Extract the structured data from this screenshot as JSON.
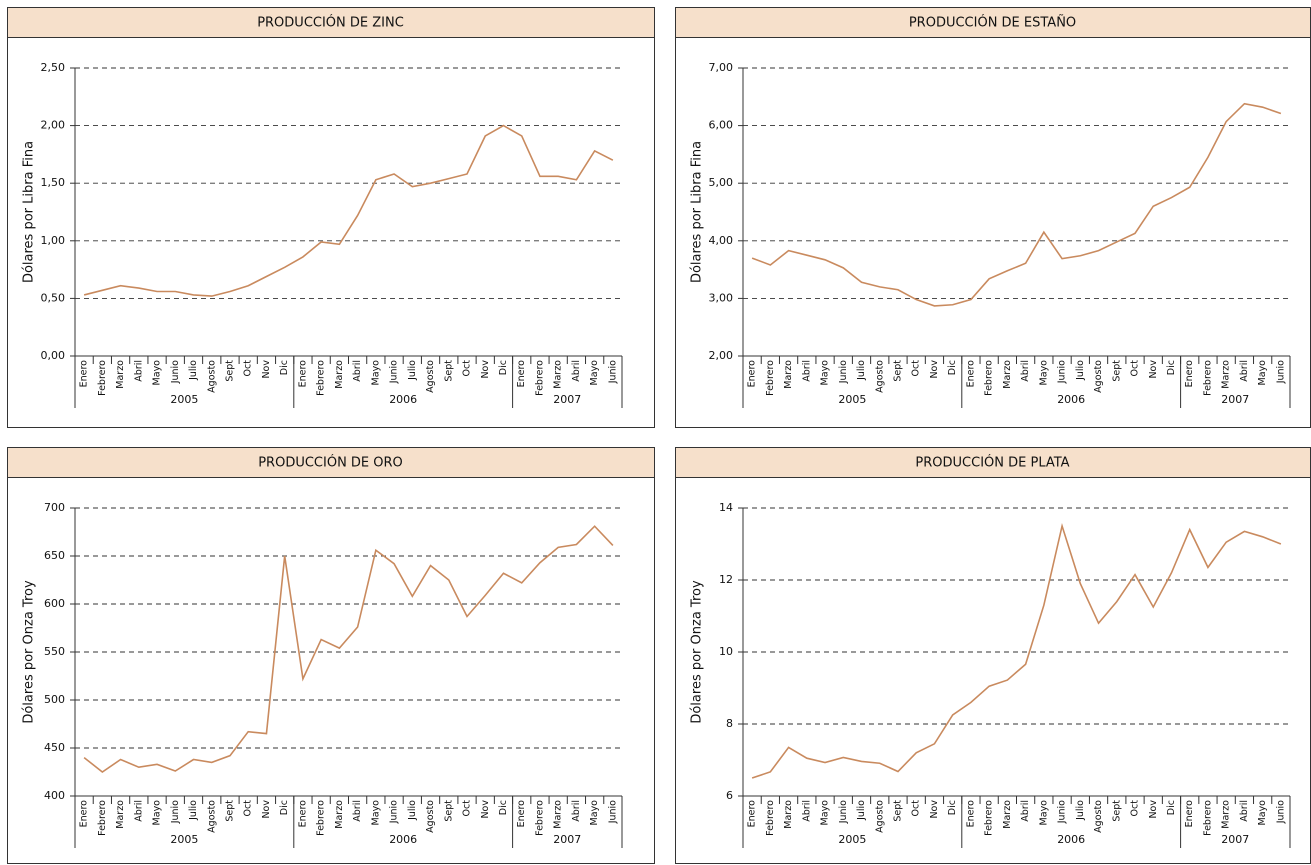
{
  "chart_data": [
    {
      "type": "line",
      "title": "PRODUCCIÓN DE ZINC",
      "ylabel": "Dólares por Libra Fina",
      "categories": [
        "Enero",
        "Febrero",
        "Marzo",
        "Abril",
        "Mayo",
        "Junio",
        "Julio",
        "Agosto",
        "Sept",
        "Oct",
        "Nov",
        "Dic",
        "Enero",
        "Febrero",
        "Marzo",
        "Abril",
        "Mayo",
        "Junio",
        "Julio",
        "Agosto",
        "Sept",
        "Oct",
        "Nov",
        "Dic",
        "Enero",
        "Febrero",
        "Marzo",
        "Abril",
        "Mayo",
        "Junio"
      ],
      "category_groups": [
        "2005",
        "2005",
        "2005",
        "2005",
        "2005",
        "2005",
        "2005",
        "2005",
        "2005",
        "2005",
        "2005",
        "2005",
        "2006",
        "2006",
        "2006",
        "2006",
        "2006",
        "2006",
        "2006",
        "2006",
        "2006",
        "2006",
        "2006",
        "2006",
        "2007",
        "2007",
        "2007",
        "2007",
        "2007",
        "2007"
      ],
      "color": "#c98a5e",
      "values": [
        0.53,
        0.57,
        0.61,
        0.59,
        0.56,
        0.56,
        0.53,
        0.52,
        0.56,
        0.61,
        0.69,
        0.77,
        0.86,
        0.99,
        0.97,
        1.22,
        1.53,
        1.58,
        1.47,
        1.5,
        1.54,
        1.58,
        1.91,
        2.0,
        1.91,
        1.56,
        1.56,
        1.53,
        1.78,
        1.7
      ],
      "ylim": [
        0,
        2.5
      ],
      "yticks": [
        {
          "value": 0,
          "label": "0,00"
        },
        {
          "value": 0.5,
          "label": "0,50"
        },
        {
          "value": 1,
          "label": "1,00"
        },
        {
          "value": 1.5,
          "label": "1,50"
        },
        {
          "value": 2,
          "label": "2,00"
        },
        {
          "value": 2.5,
          "label": "2,50"
        }
      ],
      "grid": true
    },
    {
      "type": "line",
      "title": "PRODUCCIÓN DE ESTAÑO",
      "ylabel": "Dólares por Libra Fina",
      "categories": [
        "Enero",
        "Febrero",
        "Marzo",
        "Abril",
        "Mayo",
        "Junio",
        "Julio",
        "Agosto",
        "Sept",
        "Oct",
        "Nov",
        "Dic",
        "Enero",
        "Febrero",
        "Marzo",
        "Abril",
        "Mayo",
        "Junio",
        "Julio",
        "Agosto",
        "Sept",
        "Oct",
        "Nov",
        "Dic",
        "Enero",
        "Febrero",
        "Marzo",
        "Abril",
        "Mayo",
        "Junio"
      ],
      "category_groups": [
        "2005",
        "2005",
        "2005",
        "2005",
        "2005",
        "2005",
        "2005",
        "2005",
        "2005",
        "2005",
        "2005",
        "2005",
        "2006",
        "2006",
        "2006",
        "2006",
        "2006",
        "2006",
        "2006",
        "2006",
        "2006",
        "2006",
        "2006",
        "2006",
        "2007",
        "2007",
        "2007",
        "2007",
        "2007",
        "2007"
      ],
      "color": "#c98a5e",
      "values": [
        3.7,
        3.58,
        3.83,
        3.75,
        3.67,
        3.53,
        3.28,
        3.2,
        3.15,
        2.98,
        2.87,
        2.89,
        2.98,
        3.34,
        3.48,
        3.61,
        4.15,
        3.69,
        3.74,
        3.83,
        3.98,
        4.13,
        4.6,
        4.75,
        4.93,
        5.45,
        6.07,
        6.38,
        6.32,
        6.21
      ],
      "ylim": [
        2,
        7
      ],
      "yticks": [
        {
          "value": 2,
          "label": "2,00"
        },
        {
          "value": 3,
          "label": "3,00"
        },
        {
          "value": 4,
          "label": "4,00"
        },
        {
          "value": 5,
          "label": "5,00"
        },
        {
          "value": 6,
          "label": "6,00"
        },
        {
          "value": 7,
          "label": "7,00"
        }
      ],
      "grid": true
    },
    {
      "type": "line",
      "title": "PRODUCCIÓN DE ORO",
      "ylabel": "Dólares por Onza Troy",
      "categories": [
        "Enero",
        "Febrero",
        "Marzo",
        "Abril",
        "Mayo",
        "Junio",
        "Julio",
        "Agosto",
        "Sept",
        "Oct",
        "Nov",
        "Dic",
        "Enero",
        "Febrero",
        "Marzo",
        "Abril",
        "Mayo",
        "Junio",
        "Julio",
        "Agosto",
        "Sept",
        "Oct",
        "Nov",
        "Dic",
        "Enero",
        "Febrero",
        "Marzo",
        "Abril",
        "Mayo",
        "Junio"
      ],
      "category_groups": [
        "2005",
        "2005",
        "2005",
        "2005",
        "2005",
        "2005",
        "2005",
        "2005",
        "2005",
        "2005",
        "2005",
        "2005",
        "2006",
        "2006",
        "2006",
        "2006",
        "2006",
        "2006",
        "2006",
        "2006",
        "2006",
        "2006",
        "2006",
        "2006",
        "2007",
        "2007",
        "2007",
        "2007",
        "2007",
        "2007"
      ],
      "color": "#c98a5e",
      "values": [
        440,
        425,
        438,
        430,
        433,
        426,
        438,
        435,
        442,
        467,
        465,
        650,
        522,
        563,
        554,
        576,
        656,
        642,
        608,
        640,
        625,
        587,
        609,
        632,
        622,
        643,
        659,
        662,
        681,
        661
      ],
      "ylim": [
        400,
        700
      ],
      "yticks": [
        400,
        450,
        500,
        550,
        600,
        650,
        700
      ],
      "grid": true
    },
    {
      "type": "line",
      "title": "PRODUCCIÓN DE PLATA",
      "ylabel": "Dólares por Onza Troy",
      "categories": [
        "Enero",
        "Febrero",
        "Marzo",
        "Abril",
        "Mayo",
        "Junio",
        "Julio",
        "Agosto",
        "Sept",
        "Oct",
        "Nov",
        "Dic",
        "Enero",
        "Febrero",
        "Marzo",
        "Abril",
        "Mayo",
        "Junio",
        "Julio",
        "Agosto",
        "Sept",
        "Oct",
        "Nov",
        "Dic",
        "Enero",
        "Febrero",
        "Marzo",
        "Abril",
        "Mayo",
        "Junio"
      ],
      "category_groups": [
        "2005",
        "2005",
        "2005",
        "2005",
        "2005",
        "2005",
        "2005",
        "2005",
        "2005",
        "2005",
        "2005",
        "2005",
        "2006",
        "2006",
        "2006",
        "2006",
        "2006",
        "2006",
        "2006",
        "2006",
        "2006",
        "2006",
        "2006",
        "2006",
        "2007",
        "2007",
        "2007",
        "2007",
        "2007",
        "2007"
      ],
      "color": "#c98a5e",
      "values": [
        6.5,
        6.67,
        7.35,
        7.05,
        6.93,
        7.07,
        6.96,
        6.91,
        6.68,
        7.2,
        7.45,
        8.25,
        8.6,
        9.05,
        9.22,
        9.66,
        11.3,
        13.5,
        11.9,
        10.8,
        11.4,
        12.15,
        11.25,
        12.2,
        13.4,
        12.35,
        13.05,
        13.35,
        13.2,
        13.0
      ],
      "ylim": [
        6,
        14
      ],
      "yticks": [
        6,
        8,
        10,
        12,
        14
      ],
      "grid": true
    }
  ]
}
